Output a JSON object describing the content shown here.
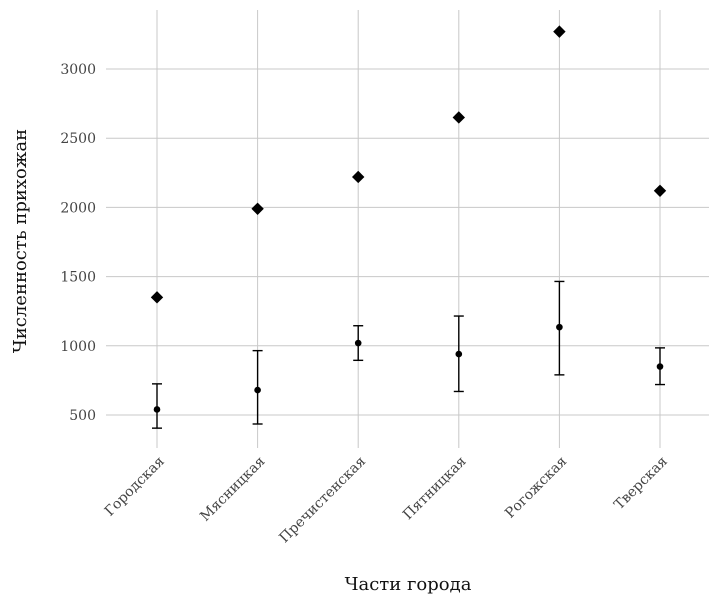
{
  "chart_data": {
    "type": "scatter",
    "title": "",
    "xlabel": "Части города",
    "ylabel": "Численность прихожан",
    "categories": [
      "Городская",
      "Мясницкая",
      "Пречистенская",
      "Пятницкая",
      "Рогожская",
      "Тверская"
    ],
    "ylim": [
      250,
      3400
    ],
    "yticks": [
      500,
      1000,
      1500,
      2000,
      2500,
      3000
    ],
    "grid": true,
    "legend": "none",
    "colors": {
      "marks": "#000000",
      "grid": "#c8c8c8",
      "background": "#ffffff"
    },
    "series": [
      {
        "marker": "diamond",
        "values": [
          1350,
          1990,
          2220,
          2650,
          3270,
          2120
        ]
      },
      {
        "marker": "point-with-errorbar",
        "values": [
          540,
          680,
          1020,
          940,
          1135,
          850
        ],
        "lower": [
          405,
          435,
          895,
          670,
          790,
          720
        ],
        "upper": [
          725,
          965,
          1145,
          1215,
          1465,
          985
        ]
      }
    ]
  }
}
